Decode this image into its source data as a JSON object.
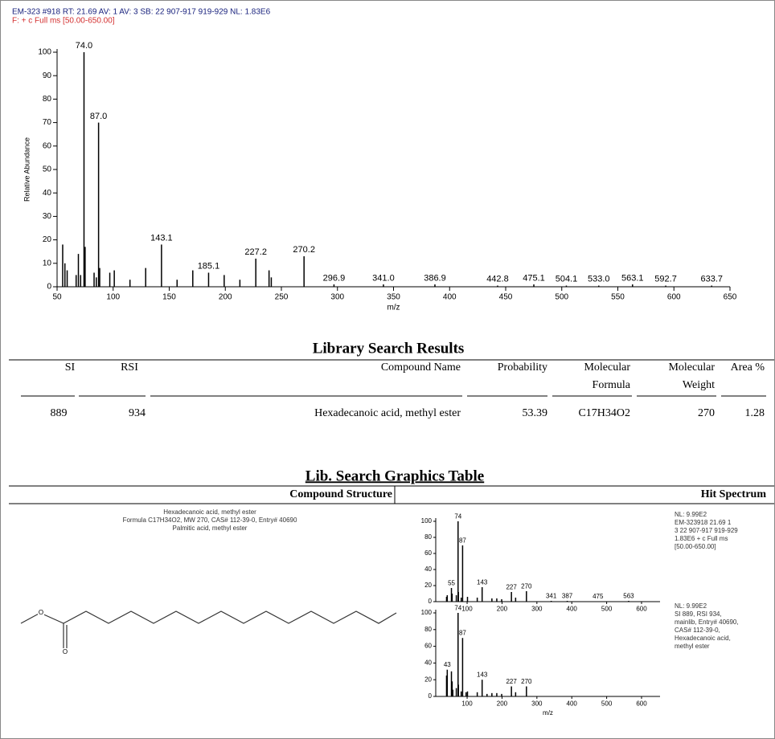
{
  "chart_data": [
    {
      "type": "bar",
      "title": "EM-323 #918  RT: 21.69  AV: 1  AV: 3  SB: 22 907-917 919-929  NL: 1.83E6",
      "subtitle": "F: + c Full ms [50.00-650.00]",
      "x_label": "m/z",
      "y_label": "Relative Abundance",
      "color": "#000000",
      "x": [
        55,
        57,
        59,
        67,
        69,
        71,
        74.0,
        75,
        83,
        85,
        87.0,
        88,
        97,
        101,
        115,
        129,
        143.1,
        157,
        171,
        185.1,
        199,
        213,
        227.2,
        239,
        241,
        270.2,
        296.9,
        341.0,
        386.9,
        442.8,
        475.1,
        504.1,
        533.0,
        563.1,
        592.7,
        633.7
      ],
      "values": [
        18,
        10,
        7,
        5,
        14,
        5,
        100,
        17,
        6,
        4,
        70,
        8,
        6,
        7,
        3,
        8,
        18,
        3,
        7,
        6,
        5,
        3,
        12,
        7,
        4,
        13,
        1,
        1,
        1,
        0.5,
        1,
        0.5,
        0.5,
        1,
        0.5,
        0.5
      ],
      "x_labels": [
        null,
        null,
        null,
        null,
        null,
        null,
        "74.0",
        null,
        null,
        null,
        "87.0",
        null,
        null,
        null,
        null,
        null,
        "143.1",
        null,
        null,
        "185.1",
        null,
        null,
        "227.2",
        null,
        null,
        "270.2",
        "296.9",
        "341.0",
        "386.9",
        "442.8",
        "475.1",
        "504.1",
        "533.0",
        "563.1",
        "592.7",
        "633.7"
      ],
      "xlim": [
        50,
        650
      ],
      "ylim": [
        0,
        100
      ],
      "xticks": [
        50,
        100,
        150,
        200,
        250,
        300,
        350,
        400,
        450,
        500,
        550,
        600,
        650
      ],
      "yticks": [
        0,
        10,
        20,
        30,
        40,
        50,
        60,
        70,
        80,
        90,
        100
      ]
    },
    {
      "type": "bar",
      "color": "#000000",
      "x": [
        41,
        43,
        55,
        57,
        69,
        74,
        75,
        83,
        87,
        101,
        129,
        143,
        171,
        185,
        199,
        227,
        239,
        270,
        341,
        387,
        475,
        563
      ],
      "values": [
        6,
        8,
        17,
        10,
        8,
        100,
        12,
        5,
        70,
        6,
        5,
        18,
        4,
        4,
        3,
        12,
        5,
        13,
        1,
        1,
        0.5,
        1
      ],
      "x_labels": [
        null,
        null,
        "55",
        null,
        null,
        "74",
        null,
        null,
        "87",
        null,
        null,
        "143",
        null,
        null,
        null,
        "227",
        null,
        "270",
        "341",
        "387",
        "475",
        "563"
      ],
      "xlim": [
        10,
        653
      ],
      "ylim": [
        0,
        100
      ],
      "xticks": [
        100,
        200,
        300,
        400,
        500,
        600
      ],
      "yticks": [
        0,
        20,
        40,
        60,
        80,
        100
      ],
      "annotations": [
        "NL: 9.99E2",
        "EM-323918  21.69  1",
        "3  22 907-917 919-929",
        " 1.83E6  + c Full ms",
        "[50.00-650.00]"
      ]
    },
    {
      "type": "bar",
      "color": "#000000",
      "x_label": "m/z",
      "x": [
        41,
        43,
        55,
        57,
        59,
        69,
        74,
        75,
        83,
        87,
        97,
        101,
        129,
        143,
        157,
        171,
        185,
        199,
        227,
        239,
        270
      ],
      "values": [
        25,
        32,
        30,
        18,
        8,
        10,
        100,
        14,
        6,
        70,
        5,
        6,
        5,
        20,
        3,
        4,
        4,
        3,
        12,
        5,
        12
      ],
      "x_labels": [
        null,
        "43",
        null,
        null,
        null,
        null,
        "74",
        null,
        null,
        "87",
        null,
        null,
        null,
        "143",
        null,
        null,
        null,
        null,
        "227",
        null,
        "270"
      ],
      "xlim": [
        10,
        653
      ],
      "ylim": [
        0,
        100
      ],
      "xticks": [
        100,
        200,
        300,
        400,
        500,
        600
      ],
      "yticks": [
        0,
        20,
        40,
        60,
        80,
        100
      ],
      "annotations": [
        "NL: 9.99E2",
        "SI 889, RSI 934,",
        "mainlib, Entry# 40690,",
        "CAS# 112-39-0,",
        "Hexadecanoic acid,",
        "methyl ester"
      ]
    }
  ],
  "library_table": {
    "title": "Library Search Results",
    "headers": [
      "SI",
      "RSI",
      "Compound Name",
      "Probability",
      "Molecular",
      "Molecular",
      "Area %"
    ],
    "headers_line2": [
      "Formula",
      "Weight"
    ],
    "row": [
      889,
      934,
      "Hexadecanoic acid, methyl ester",
      53.39,
      "C17H34O2",
      270,
      1.28
    ]
  },
  "graphics_table": {
    "title": "Lib. Search Graphics Table",
    "headers": [
      "Compound Structure",
      "Hit Spectrum"
    ],
    "structure_caption": [
      "Hexadecanoic acid, methyl ester",
      "Formula C17H34O2, MW 270, CAS# 112-39-0, Entry# 40690",
      "Palmitic acid, methyl ester"
    ],
    "atoms": [
      "O",
      "O"
    ]
  }
}
